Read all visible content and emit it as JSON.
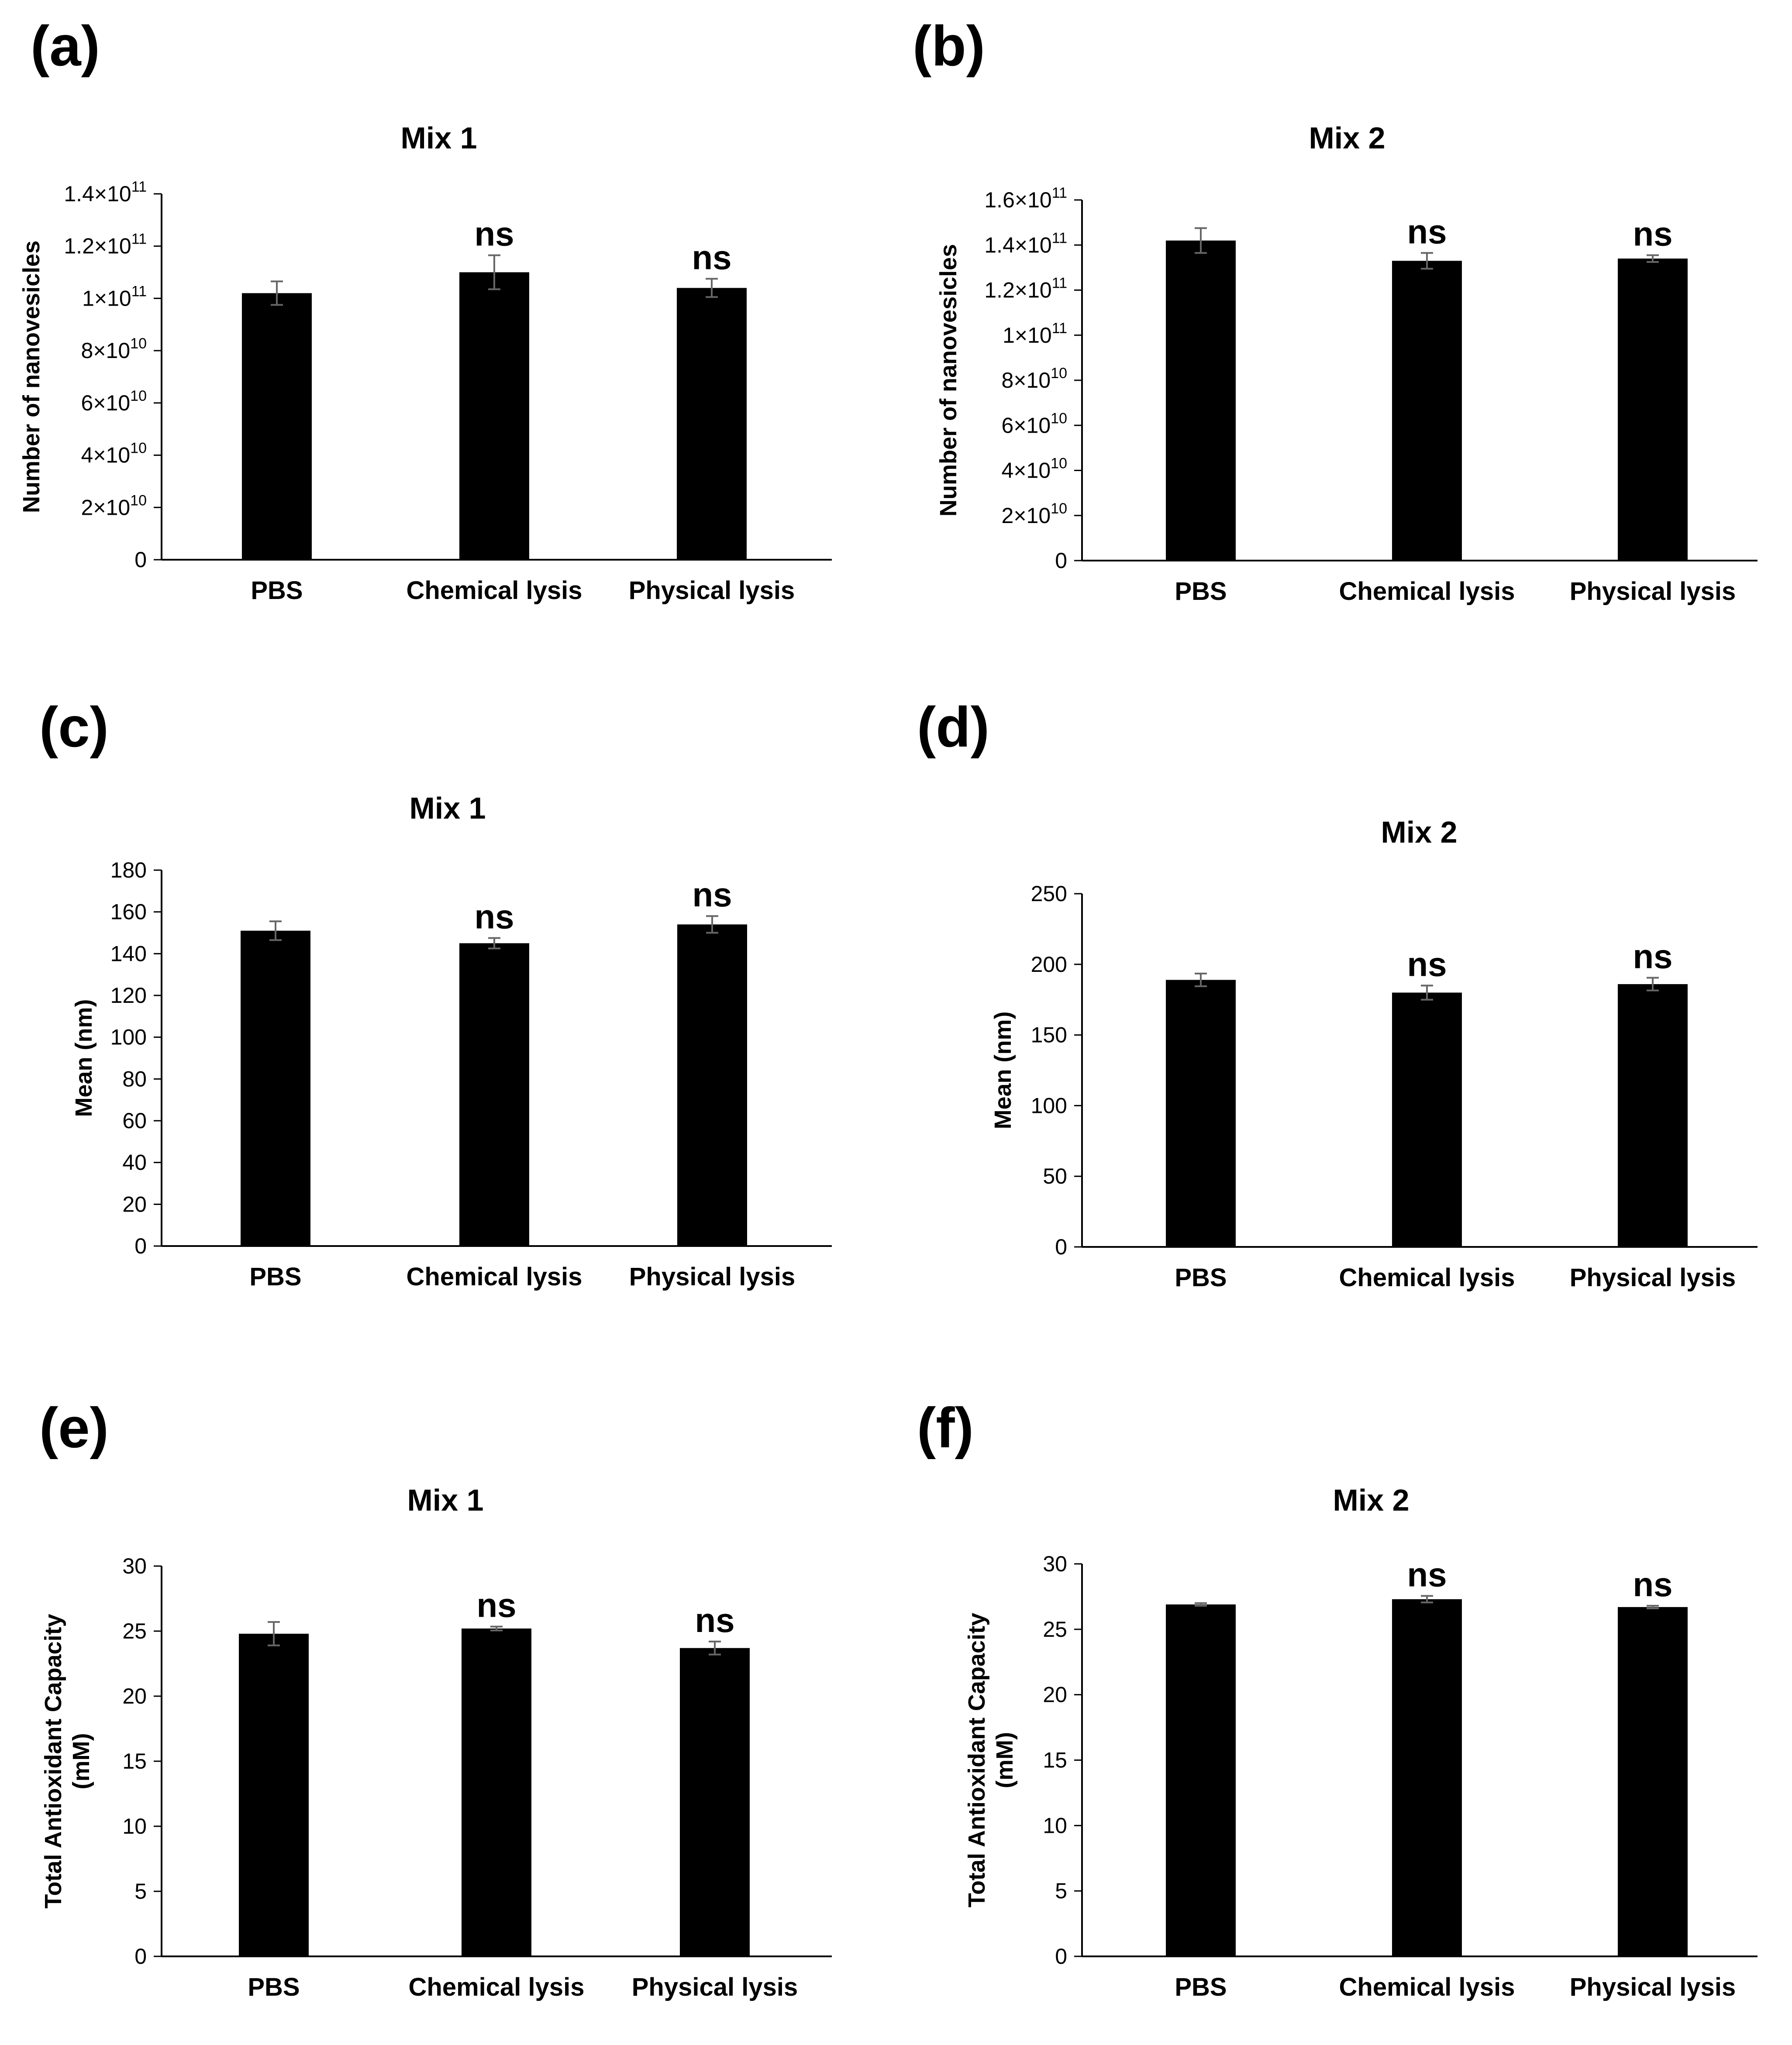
{
  "chart_data": [
    {
      "panel": "(a)",
      "type": "bar",
      "title": "Mix 1",
      "ylabel": "Number of nanovesicles",
      "xlabel": "",
      "categories": [
        "PBS",
        "Chemical lysis",
        "Physical lysis"
      ],
      "values": [
        102000000000.0,
        110000000000.0,
        104000000000.0
      ],
      "errors": [
        4500000000.0,
        6500000000.0,
        3500000000.0
      ],
      "significance": [
        "",
        "ns",
        "ns"
      ],
      "ylim": [
        0,
        140000000000.0
      ],
      "ticks": [
        0,
        20000000000.0,
        40000000000.0,
        60000000000.0,
        80000000000.0,
        100000000000.0,
        120000000000.0,
        140000000000.0
      ],
      "tick_labels": [
        {
          "base": "0",
          "exp": ""
        },
        {
          "base": "2×10",
          "exp": "10"
        },
        {
          "base": "4×10",
          "exp": "10"
        },
        {
          "base": "6×10",
          "exp": "10"
        },
        {
          "base": "8×10",
          "exp": "10"
        },
        {
          "base": "1×10",
          "exp": "11"
        },
        {
          "base": "1.2×10",
          "exp": "11"
        },
        {
          "base": "1.4×10",
          "exp": "11"
        }
      ],
      "color": "#000000"
    },
    {
      "panel": "(b)",
      "type": "bar",
      "title": "Mix 2",
      "ylabel": "Number of nanovesicles",
      "xlabel": "",
      "categories": [
        "PBS",
        "Chemical lysis",
        "Physical lysis"
      ],
      "values": [
        142000000000.0,
        133000000000.0,
        134000000000.0
      ],
      "errors": [
        5500000000.0,
        3500000000.0,
        1500000000.0
      ],
      "significance": [
        "",
        "ns",
        "ns"
      ],
      "ylim": [
        0,
        160000000000.0
      ],
      "ticks": [
        0,
        20000000000.0,
        40000000000.0,
        60000000000.0,
        80000000000.0,
        100000000000.0,
        120000000000.0,
        140000000000.0,
        160000000000.0
      ],
      "tick_labels": [
        {
          "base": "0",
          "exp": ""
        },
        {
          "base": "2×10",
          "exp": "10"
        },
        {
          "base": "4×10",
          "exp": "10"
        },
        {
          "base": "6×10",
          "exp": "10"
        },
        {
          "base": "8×10",
          "exp": "10"
        },
        {
          "base": "1×10",
          "exp": "11"
        },
        {
          "base": "1.2×10",
          "exp": "11"
        },
        {
          "base": "1.4×10",
          "exp": "11"
        },
        {
          "base": "1.6×10",
          "exp": "11"
        }
      ],
      "color": "#000000"
    },
    {
      "panel": "(c)",
      "type": "bar",
      "title": "Mix 1",
      "ylabel": "Mean (nm)",
      "xlabel": "",
      "categories": [
        "PBS",
        "Chemical lysis",
        "Physical lysis"
      ],
      "values": [
        151,
        145,
        154
      ],
      "errors": [
        4.5,
        2.5,
        4.0
      ],
      "significance": [
        "",
        "ns",
        "ns"
      ],
      "ylim": [
        0,
        180
      ],
      "ticks": [
        0,
        20,
        40,
        60,
        80,
        100,
        120,
        140,
        160,
        180
      ],
      "tick_labels": [
        {
          "base": "0",
          "exp": ""
        },
        {
          "base": "20",
          "exp": ""
        },
        {
          "base": "40",
          "exp": ""
        },
        {
          "base": "60",
          "exp": ""
        },
        {
          "base": "80",
          "exp": ""
        },
        {
          "base": "100",
          "exp": ""
        },
        {
          "base": "120",
          "exp": ""
        },
        {
          "base": "140",
          "exp": ""
        },
        {
          "base": "160",
          "exp": ""
        },
        {
          "base": "180",
          "exp": ""
        }
      ],
      "color": "#000000"
    },
    {
      "panel": "(d)",
      "type": "bar",
      "title": "Mix 2",
      "ylabel": "Mean (nm)",
      "xlabel": "",
      "categories": [
        "PBS",
        "Chemical lysis",
        "Physical lysis"
      ],
      "values": [
        189,
        180,
        186
      ],
      "errors": [
        4.5,
        5.0,
        4.5
      ],
      "significance": [
        "",
        "ns",
        "ns"
      ],
      "ylim": [
        0,
        250
      ],
      "ticks": [
        0,
        50,
        100,
        150,
        200,
        250
      ],
      "tick_labels": [
        {
          "base": "0",
          "exp": ""
        },
        {
          "base": "50",
          "exp": ""
        },
        {
          "base": "100",
          "exp": ""
        },
        {
          "base": "150",
          "exp": ""
        },
        {
          "base": "200",
          "exp": ""
        },
        {
          "base": "250",
          "exp": ""
        }
      ],
      "color": "#000000"
    },
    {
      "panel": "(e)",
      "type": "bar",
      "title": "Mix 1",
      "ylabel": "Total Antioxidant Capacity (mM)",
      "ylabel_lines": [
        "Total Antioxidant Capacity",
        "(mM)"
      ],
      "xlabel": "",
      "categories": [
        "PBS",
        "Chemical lysis",
        "Physical lysis"
      ],
      "values": [
        24.8,
        25.2,
        23.7
      ],
      "errors": [
        0.9,
        0.15,
        0.5
      ],
      "significance": [
        "",
        "ns",
        "ns"
      ],
      "ylim": [
        0,
        30
      ],
      "ticks": [
        0,
        5,
        10,
        15,
        20,
        25,
        30
      ],
      "tick_labels": [
        {
          "base": "0",
          "exp": ""
        },
        {
          "base": "5",
          "exp": ""
        },
        {
          "base": "10",
          "exp": ""
        },
        {
          "base": "15",
          "exp": ""
        },
        {
          "base": "20",
          "exp": ""
        },
        {
          "base": "25",
          "exp": ""
        },
        {
          "base": "30",
          "exp": ""
        }
      ],
      "color": "#000000"
    },
    {
      "panel": "(f)",
      "type": "bar",
      "title": "Mix 2",
      "ylabel": "Total Antioxidant Capacity (mM)",
      "ylabel_lines": [
        "Total Antioxidant Capacity",
        "(mM)"
      ],
      "xlabel": "",
      "categories": [
        "PBS",
        "Chemical lysis",
        "Physical lysis"
      ],
      "values": [
        26.9,
        27.3,
        26.7
      ],
      "errors": [
        0.1,
        0.25,
        0.1
      ],
      "significance": [
        "",
        "ns",
        "ns"
      ],
      "ylim": [
        0,
        30
      ],
      "ticks": [
        0,
        5,
        10,
        15,
        20,
        25,
        30
      ],
      "tick_labels": [
        {
          "base": "0",
          "exp": ""
        },
        {
          "base": "5",
          "exp": ""
        },
        {
          "base": "10",
          "exp": ""
        },
        {
          "base": "15",
          "exp": ""
        },
        {
          "base": "20",
          "exp": ""
        },
        {
          "base": "25",
          "exp": ""
        },
        {
          "base": "30",
          "exp": ""
        }
      ],
      "color": "#000000"
    }
  ]
}
